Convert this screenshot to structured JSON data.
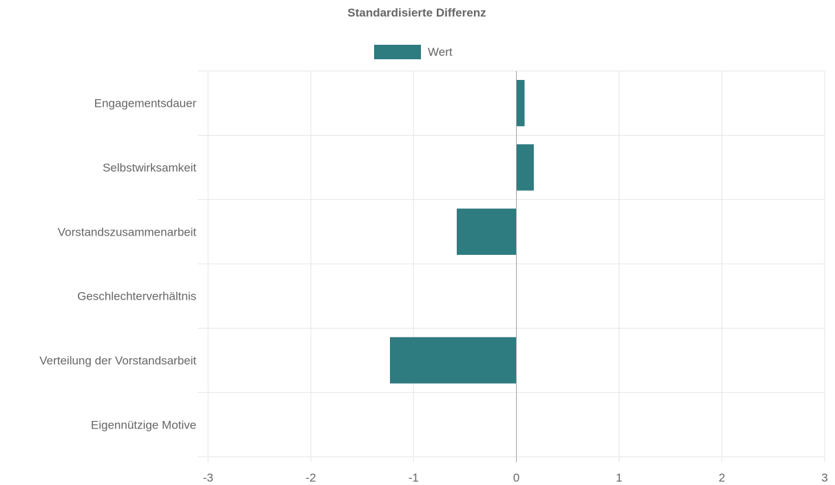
{
  "chart_data": {
    "type": "bar",
    "orientation": "horizontal",
    "title": "Standardisierte Differenz",
    "categories": [
      "Engagementsdauer",
      "Selbstwirksamkeit",
      "Vorstandszusammenarbeit",
      "Geschlechterverhältnis",
      "Verteilung der Vorstandsarbeit",
      "Eigennützige Motive"
    ],
    "series": [
      {
        "name": "Wert",
        "values": [
          0.08,
          0.17,
          -0.58,
          0,
          -1.23,
          0
        ]
      }
    ],
    "xlim": [
      -3,
      3
    ],
    "xticks": [
      "-3",
      "-2",
      "-1",
      "0",
      "1",
      "2",
      "3"
    ],
    "xlabel": "",
    "ylabel": "",
    "grid": true,
    "legend_position": "top",
    "colors": {
      "bar": "#2e7b80",
      "grid": "#e5e5e5",
      "zero_line": "#a6a6a6",
      "text": "#666666"
    }
  }
}
